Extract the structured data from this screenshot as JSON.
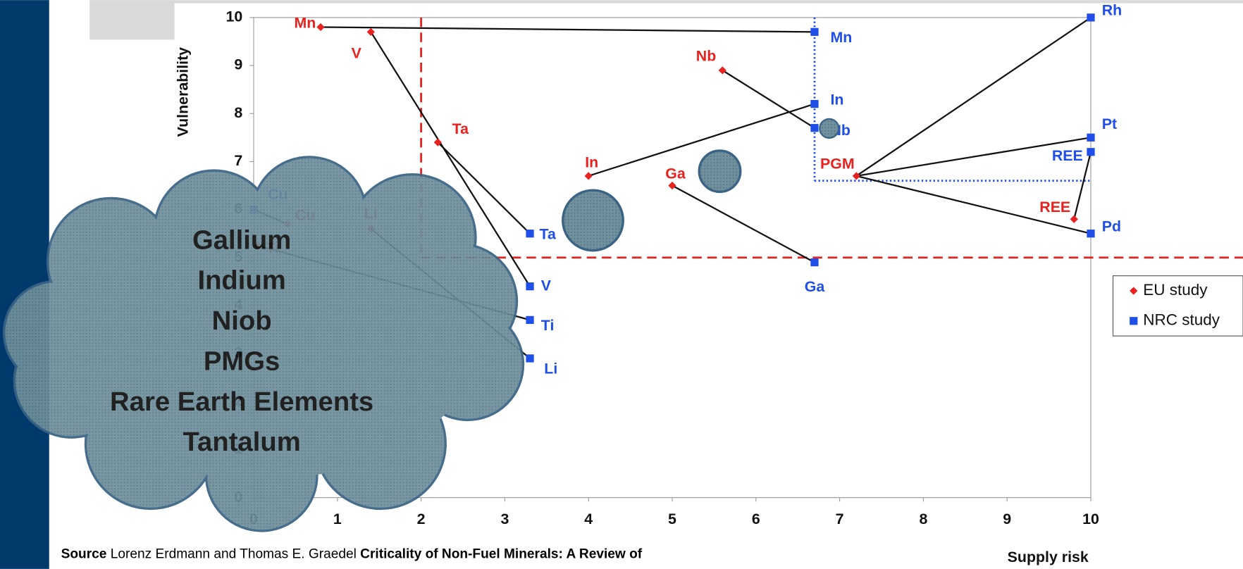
{
  "chart_data": {
    "type": "scatter",
    "xlabel": "Supply risk",
    "ylabel": "Vulnerability",
    "xlim": [
      0,
      10
    ],
    "ylim": [
      0,
      10
    ],
    "xticks": [
      0,
      1,
      2,
      3,
      4,
      5,
      6,
      7,
      8,
      9,
      10
    ],
    "yticks": [
      0,
      1,
      2,
      3,
      4,
      5,
      6,
      7,
      8,
      9,
      10
    ],
    "legend": "right",
    "series": [
      {
        "name": "EU study",
        "color": "#e8231f",
        "marker": "diamond",
        "labels": [
          "Mn",
          "V",
          "Ta",
          "In",
          "Nb",
          "Ga",
          "PGM",
          "REE",
          "Cu",
          "Li",
          "Ti"
        ],
        "x": [
          0.8,
          1.4,
          2.2,
          4.0,
          5.6,
          5.0,
          7.2,
          9.8,
          0.4,
          1.4,
          0.05
        ],
        "values": [
          9.8,
          9.7,
          7.4,
          6.7,
          8.9,
          6.5,
          6.7,
          5.8,
          5.7,
          5.6,
          5.25
        ],
        "threshold": {
          "x": 2,
          "y": 5
        }
      },
      {
        "name": "NRC study",
        "color": "#1f4fe8",
        "marker": "square",
        "labels": [
          "Mn",
          "In",
          "Nb",
          "Ga",
          "Ta",
          "V",
          "Ti",
          "Li",
          "Cu",
          "Rh",
          "Pt",
          "REE",
          "Pd"
        ],
        "x": [
          6.7,
          6.7,
          6.7,
          6.7,
          3.3,
          3.3,
          3.3,
          3.3,
          0,
          10,
          10,
          10,
          10
        ],
        "values": [
          9.7,
          8.2,
          7.7,
          4.9,
          5.5,
          4.4,
          3.7,
          2.9,
          6.0,
          10,
          7.5,
          7.2,
          5.5
        ],
        "threshold": {
          "x": 6.7,
          "y": 6.6
        }
      }
    ]
  },
  "callout": {
    "lines": [
      "Gallium",
      "Indium",
      "Niob",
      "PMGs",
      "Rare Earth Elements",
      "Tantalum"
    ]
  },
  "source": {
    "parts": [
      {
        "text": "Source",
        "bold": true
      },
      {
        "text": " Lorenz Erdmann and Thomas E. Graedel ",
        "bold": false
      },
      {
        "text": "Criticality of Non-Fuel Minerals: A Review of",
        "bold": true
      }
    ]
  }
}
